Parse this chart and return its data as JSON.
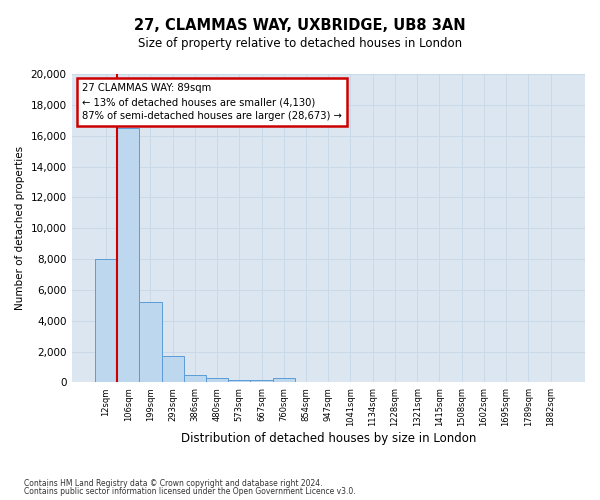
{
  "title1": "27, CLAMMAS WAY, UXBRIDGE, UB8 3AN",
  "title2": "Size of property relative to detached houses in London",
  "xlabel": "Distribution of detached houses by size in London",
  "ylabel": "Number of detached properties",
  "bar_labels": [
    "12sqm",
    "106sqm",
    "199sqm",
    "293sqm",
    "386sqm",
    "480sqm",
    "573sqm",
    "667sqm",
    "760sqm",
    "854sqm",
    "947sqm",
    "1041sqm",
    "1134sqm",
    "1228sqm",
    "1321sqm",
    "1415sqm",
    "1508sqm",
    "1602sqm",
    "1695sqm",
    "1789sqm",
    "1882sqm"
  ],
  "bar_heights": [
    8000,
    16500,
    5200,
    1700,
    500,
    300,
    170,
    130,
    280,
    0,
    0,
    0,
    0,
    0,
    0,
    0,
    0,
    0,
    0,
    0,
    0
  ],
  "bar_color": "#bdd7ee",
  "bar_edge_color": "#5b9bd5",
  "grid_color": "#c9d9e8",
  "background_color": "#dce6f1",
  "vline_x": 0.5,
  "vline_color": "#cc0000",
  "annotation_title": "27 CLAMMAS WAY: 89sqm",
  "annotation_line1": "← 13% of detached houses are smaller (4,130)",
  "annotation_line2": "87% of semi-detached houses are larger (28,673) →",
  "annotation_box_color": "#ffffff",
  "annotation_box_edge": "#cc0000",
  "ylim": [
    0,
    20000
  ],
  "yticks": [
    0,
    2000,
    4000,
    6000,
    8000,
    10000,
    12000,
    14000,
    16000,
    18000,
    20000
  ],
  "footer1": "Contains HM Land Registry data © Crown copyright and database right 2024.",
  "footer2": "Contains public sector information licensed under the Open Government Licence v3.0."
}
